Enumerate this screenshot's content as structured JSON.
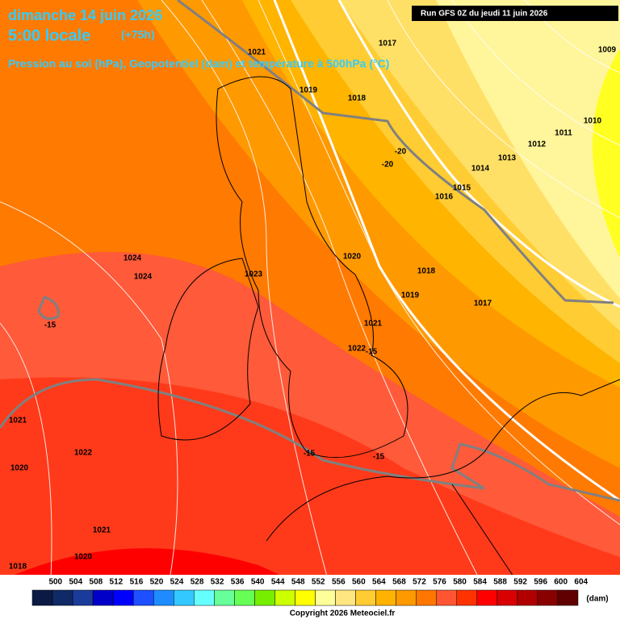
{
  "header": {
    "date": "dimanche 14 juin 2026",
    "time": "5:00 locale",
    "lead": "(+75h)",
    "subtitle": "Pression au sol (hPa), Geopotentiel (dam) et température à 500hPa (°C)"
  },
  "run": "Run GFS 0Z du jeudi 11 juin 2026",
  "isobars": [
    1021,
    1017,
    1009,
    1019,
    1018,
    1010,
    1011,
    1012,
    1013,
    1014,
    1015,
    1016,
    1024,
    1024,
    1023,
    1020,
    1018,
    1019,
    1017,
    1021,
    1022,
    1021,
    1022,
    1020,
    1021,
    1020,
    1018
  ],
  "temperatures": [
    -20,
    -20,
    -15,
    -15,
    -15,
    -15
  ],
  "colorbar": {
    "levels": [
      500,
      504,
      508,
      512,
      516,
      520,
      524,
      528,
      532,
      536,
      540,
      544,
      548,
      552,
      556,
      560,
      564,
      568,
      572,
      576,
      580,
      584,
      588,
      592,
      596,
      600,
      604
    ],
    "colors": [
      "#0b1a45",
      "#0f2a66",
      "#1a3b99",
      "#0000c8",
      "#0000ff",
      "#1e50ff",
      "#1e8cff",
      "#33c8ff",
      "#66ffff",
      "#66ff99",
      "#66ff55",
      "#77ee00",
      "#ccff00",
      "#ffff00",
      "#ffff99",
      "#ffe680",
      "#ffcc33",
      "#ffb300",
      "#ff9900",
      "#ff7700",
      "#ff5533",
      "#ff3300",
      "#ff0000",
      "#d80000",
      "#b00000",
      "#880000",
      "#600000"
    ],
    "unit": "(dam)"
  },
  "copyright": "Copyright 2026 Meteociel.fr"
}
